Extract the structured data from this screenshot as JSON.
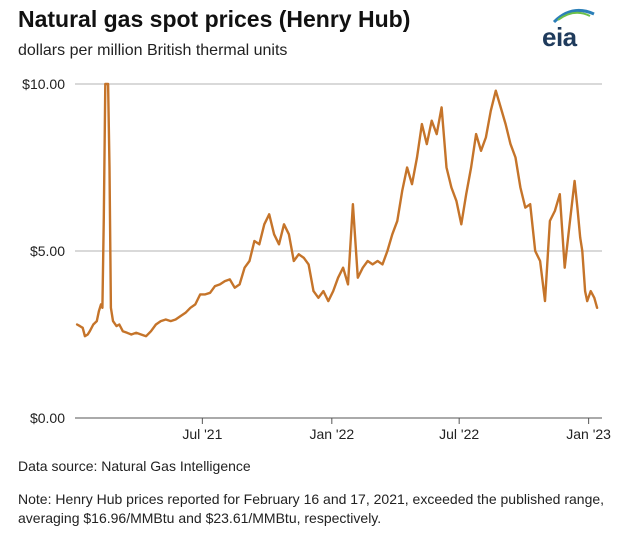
{
  "header": {
    "title": "Natural gas spot prices (Henry Hub)",
    "subtitle": "dollars per million British thermal units",
    "logo_text": "eia"
  },
  "footer": {
    "source": "Data source: Natural Gas Intelligence",
    "note": "Note: Henry Hub prices reported for February 16 and 17, 2021, exceeded the published range, averaging $16.96/MMBtu and $23.61/MMBtu, respectively."
  },
  "colors": {
    "line": "#c5742a",
    "grid": "#b3b3b3",
    "axis": "#555555",
    "logo": "#1f3b5c"
  },
  "chart_data": {
    "type": "line",
    "title": "Natural gas spot prices (Henry Hub)",
    "ylabel": "dollars per million British thermal units",
    "ylim": [
      0,
      10
    ],
    "xlim": [
      "2021-01-01",
      "2023-01-20"
    ],
    "y_ticks": [
      {
        "value": 10,
        "label": "$10.00"
      },
      {
        "value": 5,
        "label": "$5.00"
      },
      {
        "value": 0,
        "label": "$0.00"
      }
    ],
    "x_ticks": [
      {
        "date": "2021-07-01",
        "label": "Jul '21"
      },
      {
        "date": "2022-01-01",
        "label": "Jan '22"
      },
      {
        "date": "2022-07-01",
        "label": "Jul '22"
      },
      {
        "date": "2023-01-01",
        "label": "Jan '23"
      }
    ],
    "grid": true,
    "series": [
      {
        "points": [
          [
            "2021-01-04",
            2.8
          ],
          [
            "2021-01-08",
            2.75
          ],
          [
            "2021-01-12",
            2.7
          ],
          [
            "2021-01-15",
            2.45
          ],
          [
            "2021-01-19",
            2.5
          ],
          [
            "2021-01-22",
            2.6
          ],
          [
            "2021-01-27",
            2.8
          ],
          [
            "2021-02-01",
            2.9
          ],
          [
            "2021-02-04",
            3.2
          ],
          [
            "2021-02-07",
            3.4
          ],
          [
            "2021-02-09",
            3.3
          ],
          [
            "2021-02-11",
            6.0
          ],
          [
            "2021-02-13",
            10.0
          ],
          [
            "2021-02-17",
            10.0
          ],
          [
            "2021-02-19",
            7.5
          ],
          [
            "2021-02-21",
            3.3
          ],
          [
            "2021-02-24",
            2.9
          ],
          [
            "2021-03-01",
            2.75
          ],
          [
            "2021-03-05",
            2.8
          ],
          [
            "2021-03-10",
            2.6
          ],
          [
            "2021-03-16",
            2.55
          ],
          [
            "2021-03-22",
            2.5
          ],
          [
            "2021-03-29",
            2.55
          ],
          [
            "2021-04-05",
            2.5
          ],
          [
            "2021-04-12",
            2.45
          ],
          [
            "2021-04-19",
            2.6
          ],
          [
            "2021-04-26",
            2.8
          ],
          [
            "2021-05-03",
            2.9
          ],
          [
            "2021-05-10",
            2.95
          ],
          [
            "2021-05-17",
            2.9
          ],
          [
            "2021-05-24",
            2.95
          ],
          [
            "2021-05-31",
            3.05
          ],
          [
            "2021-06-07",
            3.15
          ],
          [
            "2021-06-14",
            3.3
          ],
          [
            "2021-06-21",
            3.4
          ],
          [
            "2021-06-28",
            3.7
          ],
          [
            "2021-07-05",
            3.7
          ],
          [
            "2021-07-12",
            3.75
          ],
          [
            "2021-07-19",
            3.95
          ],
          [
            "2021-07-26",
            4.0
          ],
          [
            "2021-08-02",
            4.1
          ],
          [
            "2021-08-09",
            4.15
          ],
          [
            "2021-08-16",
            3.9
          ],
          [
            "2021-08-23",
            4.0
          ],
          [
            "2021-08-30",
            4.5
          ],
          [
            "2021-09-06",
            4.7
          ],
          [
            "2021-09-13",
            5.3
          ],
          [
            "2021-09-20",
            5.2
          ],
          [
            "2021-09-27",
            5.8
          ],
          [
            "2021-10-04",
            6.1
          ],
          [
            "2021-10-11",
            5.5
          ],
          [
            "2021-10-18",
            5.2
          ],
          [
            "2021-10-25",
            5.8
          ],
          [
            "2021-11-01",
            5.5
          ],
          [
            "2021-11-08",
            4.7
          ],
          [
            "2021-11-15",
            4.9
          ],
          [
            "2021-11-22",
            4.8
          ],
          [
            "2021-11-29",
            4.6
          ],
          [
            "2021-12-06",
            3.8
          ],
          [
            "2021-12-13",
            3.6
          ],
          [
            "2021-12-20",
            3.8
          ],
          [
            "2021-12-27",
            3.5
          ],
          [
            "2022-01-03",
            3.8
          ],
          [
            "2022-01-10",
            4.2
          ],
          [
            "2022-01-17",
            4.5
          ],
          [
            "2022-01-24",
            4.0
          ],
          [
            "2022-01-31",
            6.4
          ],
          [
            "2022-02-07",
            4.2
          ],
          [
            "2022-02-14",
            4.5
          ],
          [
            "2022-02-21",
            4.7
          ],
          [
            "2022-02-28",
            4.6
          ],
          [
            "2022-03-07",
            4.7
          ],
          [
            "2022-03-14",
            4.6
          ],
          [
            "2022-03-21",
            5.0
          ],
          [
            "2022-03-28",
            5.5
          ],
          [
            "2022-04-04",
            5.9
          ],
          [
            "2022-04-11",
            6.8
          ],
          [
            "2022-04-18",
            7.5
          ],
          [
            "2022-04-25",
            7.0
          ],
          [
            "2022-05-02",
            7.8
          ],
          [
            "2022-05-09",
            8.8
          ],
          [
            "2022-05-16",
            8.2
          ],
          [
            "2022-05-23",
            8.9
          ],
          [
            "2022-05-30",
            8.5
          ],
          [
            "2022-06-06",
            9.3
          ],
          [
            "2022-06-13",
            7.5
          ],
          [
            "2022-06-20",
            6.9
          ],
          [
            "2022-06-27",
            6.5
          ],
          [
            "2022-07-04",
            5.8
          ],
          [
            "2022-07-11",
            6.7
          ],
          [
            "2022-07-18",
            7.5
          ],
          [
            "2022-07-25",
            8.5
          ],
          [
            "2022-08-01",
            8.0
          ],
          [
            "2022-08-08",
            8.4
          ],
          [
            "2022-08-15",
            9.2
          ],
          [
            "2022-08-22",
            9.8
          ],
          [
            "2022-08-29",
            9.3
          ],
          [
            "2022-09-05",
            8.8
          ],
          [
            "2022-09-12",
            8.2
          ],
          [
            "2022-09-19",
            7.8
          ],
          [
            "2022-09-26",
            6.9
          ],
          [
            "2022-10-03",
            6.3
          ],
          [
            "2022-10-10",
            6.4
          ],
          [
            "2022-10-17",
            5.0
          ],
          [
            "2022-10-24",
            4.7
          ],
          [
            "2022-10-31",
            3.5
          ],
          [
            "2022-11-07",
            5.9
          ],
          [
            "2022-11-14",
            6.2
          ],
          [
            "2022-11-21",
            6.7
          ],
          [
            "2022-11-28",
            4.5
          ],
          [
            "2022-12-05",
            5.8
          ],
          [
            "2022-12-12",
            7.1
          ],
          [
            "2022-12-16",
            6.3
          ],
          [
            "2022-12-20",
            5.4
          ],
          [
            "2022-12-23",
            5.0
          ],
          [
            "2022-12-27",
            3.8
          ],
          [
            "2022-12-30",
            3.5
          ],
          [
            "2023-01-04",
            3.8
          ],
          [
            "2023-01-09",
            3.6
          ],
          [
            "2023-01-13",
            3.3
          ]
        ]
      }
    ]
  }
}
